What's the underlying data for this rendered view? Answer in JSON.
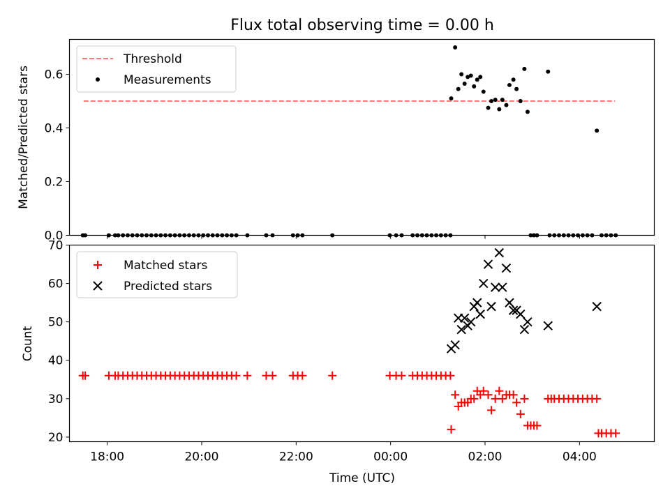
{
  "figure": {
    "title": "Flux total observing time = 0.00 h"
  },
  "chart_data": [
    {
      "type": "scatter",
      "ylabel": "Matched/Predicted stars",
      "xlim": [
        "17:12",
        "05:35"
      ],
      "ylim": [
        0,
        0.73
      ],
      "y_ticks": [
        0.0,
        0.2,
        0.4,
        0.6
      ],
      "y_tick_labels": [
        "0.0",
        "0.2",
        "0.4",
        "0.6"
      ],
      "grid": false,
      "legend_position": "top-left",
      "threshold": {
        "name": "Threshold",
        "value": 0.5,
        "x_range": [
          "17:30",
          "04:45"
        ],
        "color": "#ff7777"
      },
      "series": [
        {
          "name": "Measurements",
          "marker": "dot",
          "color": "#000000",
          "points": [
            [
              "17:29",
              0
            ],
            [
              "17:32",
              0
            ],
            [
              "18:02",
              0
            ],
            [
              "18:10",
              0
            ],
            [
              "18:14",
              0
            ],
            [
              "18:20",
              0
            ],
            [
              "18:26",
              0
            ],
            [
              "18:32",
              0
            ],
            [
              "18:38",
              0
            ],
            [
              "18:44",
              0
            ],
            [
              "18:50",
              0
            ],
            [
              "18:56",
              0
            ],
            [
              "19:02",
              0
            ],
            [
              "19:08",
              0
            ],
            [
              "19:14",
              0
            ],
            [
              "19:20",
              0
            ],
            [
              "19:26",
              0
            ],
            [
              "19:32",
              0
            ],
            [
              "19:38",
              0
            ],
            [
              "19:44",
              0
            ],
            [
              "19:50",
              0
            ],
            [
              "19:56",
              0
            ],
            [
              "20:02",
              0
            ],
            [
              "20:08",
              0
            ],
            [
              "20:14",
              0
            ],
            [
              "20:20",
              0
            ],
            [
              "20:26",
              0
            ],
            [
              "20:32",
              0
            ],
            [
              "20:38",
              0
            ],
            [
              "20:44",
              0
            ],
            [
              "20:58",
              0
            ],
            [
              "21:22",
              0
            ],
            [
              "21:30",
              0
            ],
            [
              "21:56",
              0
            ],
            [
              "22:02",
              0
            ],
            [
              "22:08",
              0
            ],
            [
              "22:46",
              0
            ],
            [
              "23:59",
              0
            ],
            [
              "00:07",
              0
            ],
            [
              "00:14",
              0
            ],
            [
              "00:28",
              0
            ],
            [
              "00:34",
              0
            ],
            [
              "00:40",
              0
            ],
            [
              "00:46",
              0
            ],
            [
              "00:52",
              0
            ],
            [
              "00:58",
              0
            ],
            [
              "01:04",
              0
            ],
            [
              "01:10",
              0
            ],
            [
              "01:16",
              0
            ],
            [
              "01:17",
              0.51
            ],
            [
              "01:22",
              0.7
            ],
            [
              "01:26",
              0.545
            ],
            [
              "01:30",
              0.6
            ],
            [
              "01:34",
              0.565
            ],
            [
              "01:38",
              0.59
            ],
            [
              "01:42",
              0.595
            ],
            [
              "01:46",
              0.555
            ],
            [
              "01:50",
              0.58
            ],
            [
              "01:54",
              0.59
            ],
            [
              "01:58",
              0.535
            ],
            [
              "02:04",
              0.475
            ],
            [
              "02:08",
              0.5
            ],
            [
              "02:13",
              0.505
            ],
            [
              "02:18",
              0.47
            ],
            [
              "02:22",
              0.505
            ],
            [
              "02:27",
              0.485
            ],
            [
              "02:31",
              0.56
            ],
            [
              "02:36",
              0.58
            ],
            [
              "02:40",
              0.545
            ],
            [
              "02:45",
              0.5
            ],
            [
              "02:50",
              0.62
            ],
            [
              "02:54",
              0.46
            ],
            [
              "03:20",
              0.61
            ],
            [
              "04:22",
              0.39
            ],
            [
              "02:58",
              0
            ],
            [
              "03:02",
              0
            ],
            [
              "03:06",
              0
            ],
            [
              "03:22",
              0
            ],
            [
              "03:28",
              0
            ],
            [
              "03:34",
              0
            ],
            [
              "03:40",
              0
            ],
            [
              "03:46",
              0
            ],
            [
              "03:52",
              0
            ],
            [
              "03:58",
              0
            ],
            [
              "04:04",
              0
            ],
            [
              "04:10",
              0
            ],
            [
              "04:16",
              0
            ],
            [
              "04:28",
              0
            ],
            [
              "04:34",
              0
            ],
            [
              "04:40",
              0
            ],
            [
              "04:46",
              0
            ]
          ]
        }
      ]
    },
    {
      "type": "scatter",
      "xlabel": "Time (UTC)",
      "ylabel": "Count",
      "xlim": [
        "17:12",
        "05:35"
      ],
      "ylim": [
        18.8,
        70
      ],
      "x_ticks": [
        "18:00",
        "20:00",
        "22:00",
        "00:00",
        "02:00",
        "04:00"
      ],
      "y_ticks": [
        20,
        30,
        40,
        50,
        60,
        70
      ],
      "y_tick_labels": [
        "20",
        "30",
        "40",
        "50",
        "60",
        "70"
      ],
      "grid": false,
      "legend_position": "top-left",
      "series": [
        {
          "name": "Matched stars",
          "marker": "plus",
          "color": "#ff0000",
          "points": [
            [
              "17:29",
              36
            ],
            [
              "17:32",
              36
            ],
            [
              "18:02",
              36
            ],
            [
              "18:10",
              36
            ],
            [
              "18:14",
              36
            ],
            [
              "18:20",
              36
            ],
            [
              "18:26",
              36
            ],
            [
              "18:32",
              36
            ],
            [
              "18:38",
              36
            ],
            [
              "18:44",
              36
            ],
            [
              "18:50",
              36
            ],
            [
              "18:56",
              36
            ],
            [
              "19:02",
              36
            ],
            [
              "19:08",
              36
            ],
            [
              "19:14",
              36
            ],
            [
              "19:20",
              36
            ],
            [
              "19:26",
              36
            ],
            [
              "19:32",
              36
            ],
            [
              "19:38",
              36
            ],
            [
              "19:44",
              36
            ],
            [
              "19:50",
              36
            ],
            [
              "19:56",
              36
            ],
            [
              "20:02",
              36
            ],
            [
              "20:08",
              36
            ],
            [
              "20:14",
              36
            ],
            [
              "20:20",
              36
            ],
            [
              "20:26",
              36
            ],
            [
              "20:32",
              36
            ],
            [
              "20:38",
              36
            ],
            [
              "20:44",
              36
            ],
            [
              "20:58",
              36
            ],
            [
              "21:22",
              36
            ],
            [
              "21:30",
              36
            ],
            [
              "21:56",
              36
            ],
            [
              "22:02",
              36
            ],
            [
              "22:08",
              36
            ],
            [
              "22:46",
              36
            ],
            [
              "23:59",
              36
            ],
            [
              "00:07",
              36
            ],
            [
              "00:14",
              36
            ],
            [
              "00:28",
              36
            ],
            [
              "00:34",
              36
            ],
            [
              "00:40",
              36
            ],
            [
              "00:46",
              36
            ],
            [
              "00:52",
              36
            ],
            [
              "00:58",
              36
            ],
            [
              "01:04",
              36
            ],
            [
              "01:10",
              36
            ],
            [
              "01:16",
              36
            ],
            [
              "01:17",
              22
            ],
            [
              "01:22",
              31
            ],
            [
              "01:26",
              28
            ],
            [
              "01:30",
              29
            ],
            [
              "01:34",
              29
            ],
            [
              "01:38",
              29
            ],
            [
              "01:42",
              30
            ],
            [
              "01:46",
              30
            ],
            [
              "01:50",
              32
            ],
            [
              "01:54",
              31
            ],
            [
              "01:58",
              32
            ],
            [
              "02:04",
              31
            ],
            [
              "02:08",
              27
            ],
            [
              "02:13",
              30
            ],
            [
              "02:18",
              32
            ],
            [
              "02:22",
              30
            ],
            [
              "02:27",
              31
            ],
            [
              "02:31",
              31
            ],
            [
              "02:36",
              31
            ],
            [
              "02:40",
              29
            ],
            [
              "02:45",
              26
            ],
            [
              "02:50",
              30
            ],
            [
              "02:54",
              23
            ],
            [
              "02:58",
              23
            ],
            [
              "03:02",
              23
            ],
            [
              "03:06",
              23
            ],
            [
              "03:20",
              30
            ],
            [
              "03:24",
              30
            ],
            [
              "03:28",
              30
            ],
            [
              "03:34",
              30
            ],
            [
              "03:40",
              30
            ],
            [
              "03:46",
              30
            ],
            [
              "03:52",
              30
            ],
            [
              "03:58",
              30
            ],
            [
              "04:04",
              30
            ],
            [
              "04:10",
              30
            ],
            [
              "04:16",
              30
            ],
            [
              "04:22",
              30
            ],
            [
              "04:24",
              21
            ],
            [
              "04:28",
              21
            ],
            [
              "04:34",
              21
            ],
            [
              "04:40",
              21
            ],
            [
              "04:46",
              21
            ]
          ]
        },
        {
          "name": "Predicted stars",
          "marker": "x",
          "color": "#000000",
          "points": [
            [
              "01:17",
              43
            ],
            [
              "01:22",
              44
            ],
            [
              "01:26",
              51
            ],
            [
              "01:30",
              48
            ],
            [
              "01:34",
              51
            ],
            [
              "01:38",
              49
            ],
            [
              "01:42",
              50
            ],
            [
              "01:46",
              54
            ],
            [
              "01:50",
              55
            ],
            [
              "01:54",
              52
            ],
            [
              "01:58",
              60
            ],
            [
              "02:04",
              65
            ],
            [
              "02:08",
              54
            ],
            [
              "02:13",
              59
            ],
            [
              "02:18",
              68
            ],
            [
              "02:22",
              59
            ],
            [
              "02:27",
              64
            ],
            [
              "02:31",
              55
            ],
            [
              "02:36",
              53
            ],
            [
              "02:40",
              53
            ],
            [
              "02:45",
              52
            ],
            [
              "02:50",
              48
            ],
            [
              "02:54",
              50
            ],
            [
              "03:20",
              49
            ],
            [
              "04:22",
              54
            ]
          ]
        }
      ]
    }
  ]
}
